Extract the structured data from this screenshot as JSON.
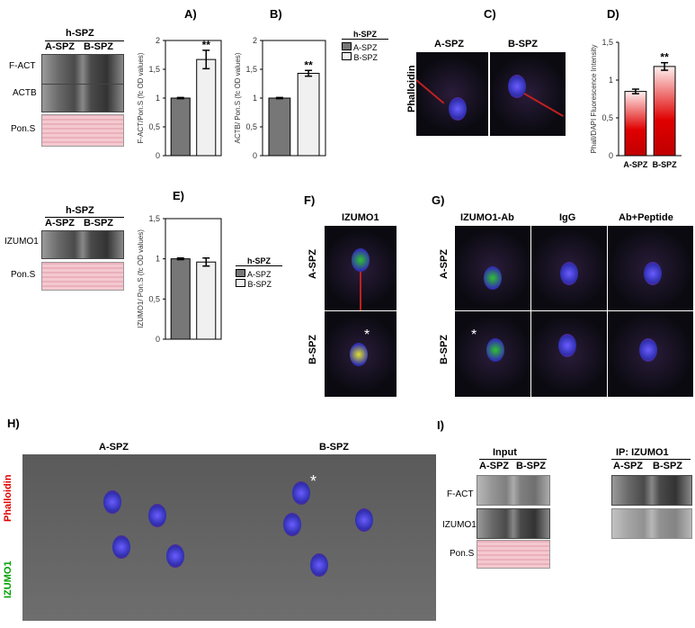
{
  "panels": {
    "A": "A)",
    "B": "B)",
    "C": "C)",
    "D": "D)",
    "E": "E)",
    "F": "F)",
    "G": "G)",
    "H": "H)",
    "I": "I)"
  },
  "blot_top": {
    "group": "h-SPZ",
    "cols": [
      "A-SPZ",
      "B-SPZ"
    ],
    "rows": [
      "F-ACT",
      "ACTB",
      "Pon.S"
    ]
  },
  "blot_e": {
    "group": "h-SPZ",
    "cols": [
      "A-SPZ",
      "B-SPZ"
    ],
    "rows": [
      "IZUMO1",
      "Pon.S"
    ]
  },
  "legend": {
    "title": "h-SPZ",
    "items": [
      "A-SPZ",
      "B-SPZ"
    ]
  },
  "colors": {
    "a_bar": "#777777",
    "b_bar": "#f0f0f0",
    "red_bar": "#d40000"
  },
  "panel_c": {
    "cols": [
      "A-SPZ",
      "B-SPZ"
    ],
    "row": "Phalloidin"
  },
  "panel_f": {
    "col": "IZUMO1",
    "rows": [
      "A-SPZ",
      "B-SPZ"
    ],
    "asterisk": "*"
  },
  "panel_g": {
    "cols": [
      "IZUMO1-Ab",
      "IgG",
      "Ab+Peptide"
    ],
    "rows": [
      "A-SPZ",
      "B-SPZ"
    ],
    "asterisk": "*"
  },
  "panel_h": {
    "cols": [
      "A-SPZ",
      "B-SPZ"
    ],
    "stains": [
      "Phalloidin",
      "IZUMO1"
    ],
    "asterisk": "*"
  },
  "panel_i": {
    "groups": [
      "Input",
      "IP: IZUMO1"
    ],
    "cols": [
      "A-SPZ",
      "B-SPZ"
    ],
    "rows": [
      "F-ACT",
      "IZUMO1",
      "Pon.S"
    ]
  },
  "chart_data": [
    {
      "id": "A",
      "type": "bar",
      "categories": [
        "A-SPZ",
        "B-SPZ"
      ],
      "values": [
        1.0,
        1.67
      ],
      "errors": [
        0.01,
        0.16
      ],
      "significance": [
        "",
        "**"
      ],
      "ylabel": "F-ACT/Pon.S (fc OD values)",
      "ylim": [
        0,
        2
      ],
      "yticks": [
        "0",
        "0,5",
        "1",
        "1,5",
        "2"
      ]
    },
    {
      "id": "B",
      "type": "bar",
      "categories": [
        "A-SPZ",
        "B-SPZ"
      ],
      "values": [
        1.0,
        1.43
      ],
      "errors": [
        0.01,
        0.05
      ],
      "significance": [
        "",
        "**"
      ],
      "ylabel": "ACTB/ Pon.S (fc OD values)",
      "ylim": [
        0,
        2
      ],
      "yticks": [
        "0",
        "0,5",
        "1",
        "1,5",
        "2"
      ]
    },
    {
      "id": "D",
      "type": "bar",
      "categories": [
        "A-SPZ",
        "B-SPZ"
      ],
      "values": [
        0.85,
        1.18
      ],
      "errors": [
        0.03,
        0.05
      ],
      "significance": [
        "",
        "**"
      ],
      "ylabel": "Phall/DAPI Fluorescence Intensity",
      "ylim": [
        0,
        1.5
      ],
      "yticks": [
        "0",
        "0,5",
        "1",
        "1,5"
      ]
    },
    {
      "id": "E",
      "type": "bar",
      "categories": [
        "A-SPZ",
        "B-SPZ"
      ],
      "values": [
        1.0,
        0.96
      ],
      "errors": [
        0.01,
        0.05
      ],
      "significance": [
        "",
        ""
      ],
      "ylabel": "IZUMO1/ Pon.S (fc OD values)",
      "ylim": [
        0,
        1.5
      ],
      "yticks": [
        "0",
        "0,5",
        "1",
        "1,5"
      ]
    }
  ]
}
